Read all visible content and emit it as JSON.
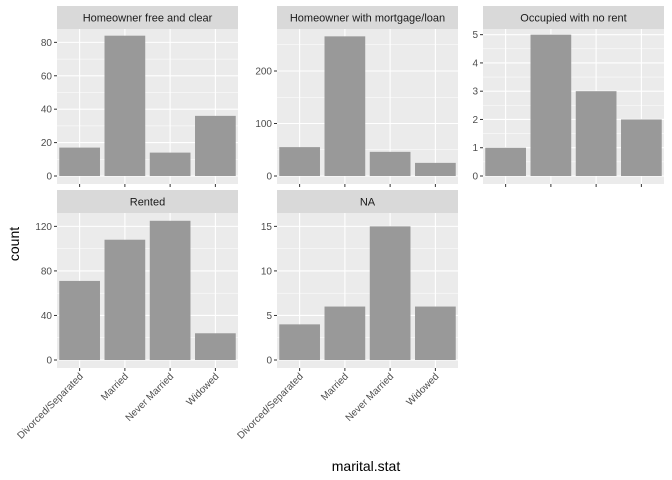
{
  "chart_data": {
    "type": "bar",
    "xlabel": "marital.stat",
    "ylabel": "count",
    "categories": [
      "Divorced/Separated",
      "Married",
      "Never Married",
      "Widowed"
    ],
    "panels": [
      {
        "title": "Homeowner free and clear",
        "values": [
          17,
          84,
          14,
          36
        ],
        "ylim": [
          0,
          88
        ],
        "yticks": [
          0,
          20,
          40,
          60,
          80
        ]
      },
      {
        "title": "Homeowner with mortgage/loan",
        "values": [
          55,
          266,
          46,
          25
        ],
        "ylim": [
          0,
          280
        ],
        "yticks": [
          0,
          100,
          200
        ]
      },
      {
        "title": "Occupied with no rent",
        "values": [
          1,
          5,
          3,
          2
        ],
        "ylim": [
          0,
          5.2
        ],
        "yticks": [
          0,
          1,
          2,
          3,
          4,
          5
        ]
      },
      {
        "title": "Rented",
        "values": [
          71,
          108,
          125,
          24
        ],
        "ylim": [
          0,
          132
        ],
        "yticks": [
          0,
          40,
          80,
          120
        ]
      },
      {
        "title": "NA",
        "values": [
          4,
          6,
          15,
          6
        ],
        "ylim": [
          0,
          16.5
        ],
        "yticks": [
          0,
          5,
          10,
          15
        ]
      }
    ],
    "colors": {
      "bar": "#999999",
      "panel_bg": "#EBEBEB",
      "grid": "#FFFFFF",
      "strip_bg": "#D9D9D9"
    }
  }
}
